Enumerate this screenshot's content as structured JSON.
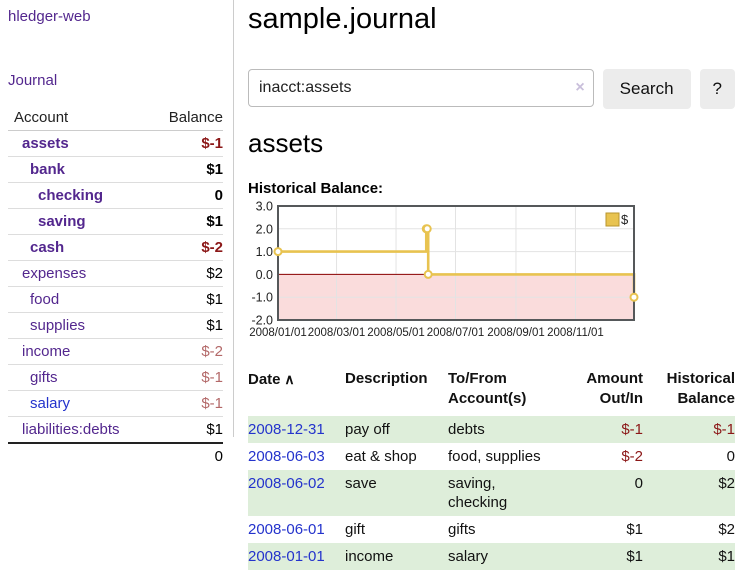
{
  "app": {
    "brand": "hledger-web"
  },
  "colors": {
    "link_purple": "#53278e",
    "link_blue": "#2433cc",
    "negative_strong": "#8b1717",
    "negative_muted": "#b36868",
    "row_stripe_green": "#deeeda"
  },
  "sidebar": {
    "journal_link": "Journal",
    "accounts": {
      "col_account": "Account",
      "col_balance": "Balance",
      "rows": [
        {
          "name": "assets",
          "depth": 1,
          "bold": true,
          "link": "purple",
          "balance": "$-1",
          "balance_style": "neg"
        },
        {
          "name": "bank",
          "depth": 2,
          "bold": true,
          "link": "purple",
          "balance": "$1",
          "balance_style": ""
        },
        {
          "name": "checking",
          "depth": 3,
          "bold": true,
          "link": "purple",
          "balance": "0",
          "balance_style": ""
        },
        {
          "name": "saving",
          "depth": 3,
          "bold": true,
          "link": "purple",
          "balance": "$1",
          "balance_style": ""
        },
        {
          "name": "cash",
          "depth": 2,
          "bold": true,
          "link": "purple",
          "balance": "$-2",
          "balance_style": "neg"
        },
        {
          "name": "expenses",
          "depth": 1,
          "bold": false,
          "link": "purple",
          "balance": "$2",
          "balance_style": ""
        },
        {
          "name": "food",
          "depth": 2,
          "bold": false,
          "link": "purple",
          "balance": "$1",
          "balance_style": ""
        },
        {
          "name": "supplies",
          "depth": 2,
          "bold": false,
          "link": "purple",
          "balance": "$1",
          "balance_style": ""
        },
        {
          "name": "income",
          "depth": 1,
          "bold": false,
          "link": "purple",
          "balance": "$-2",
          "balance_style": "neg-muted"
        },
        {
          "name": "gifts",
          "depth": 2,
          "bold": false,
          "link": "purple",
          "balance": "$-1",
          "balance_style": "neg-muted"
        },
        {
          "name": "salary",
          "depth": 2,
          "bold": false,
          "link": "blue",
          "balance": "$-1",
          "balance_style": "neg-muted"
        },
        {
          "name": "liabilities:debts",
          "depth": 1,
          "bold": false,
          "link": "purple",
          "balance": "$1",
          "balance_style": ""
        }
      ],
      "total": "0"
    }
  },
  "main": {
    "title": "sample.journal",
    "search": {
      "value": "inacct:assets",
      "clear_icon": "×",
      "button": "Search",
      "help_button": "?"
    },
    "account_heading": "assets",
    "chart_label": "Historical Balance:"
  },
  "chart_data": {
    "type": "line",
    "step": true,
    "title": "Historical Balance:",
    "xlabel": "",
    "ylabel": "",
    "x_range": [
      "2008-01-01",
      "2008-12-31"
    ],
    "ylim": [
      -2.0,
      3.0
    ],
    "y_ticks": [
      3.0,
      2.0,
      1.0,
      0.0,
      -1.0,
      -2.0
    ],
    "y_tick_labels": [
      "3.0",
      "2.0",
      "1.0",
      "0.0",
      "-1.0",
      "-2.0"
    ],
    "x_ticks": [
      "2008-01-01",
      "2008-03-01",
      "2008-05-01",
      "2008-07-01",
      "2008-09-01",
      "2008-11-01"
    ],
    "x_tick_labels": [
      "2008/01/01",
      "2008/03/01",
      "2008/05/01",
      "2008/07/01",
      "2008/09/01",
      "2008/11/01"
    ],
    "grid": true,
    "legend_position": "top-right",
    "series": [
      {
        "name": "$",
        "color": "#e8c350",
        "points": [
          [
            "2008-01-01",
            1
          ],
          [
            "2008-06-01",
            2
          ],
          [
            "2008-06-02",
            2
          ],
          [
            "2008-06-03",
            0
          ],
          [
            "2008-12-31",
            -1
          ]
        ]
      }
    ],
    "negative_region": {
      "from": 0,
      "to": -2,
      "color": "#fadcdc"
    },
    "zero_line_color": "#8b0000",
    "grid_color": "#e3e3e3",
    "border_color": "#55585a",
    "legend_swatch_border": "#b8962e"
  },
  "register": {
    "columns": [
      {
        "label": "Date",
        "sort_icon": "∧",
        "align": "left"
      },
      {
        "label": "Description",
        "align": "left"
      },
      {
        "label": "To/From Account(s)",
        "align": "left"
      },
      {
        "label": "Amount Out/In",
        "align": "right"
      },
      {
        "label": "Historical Balance",
        "align": "right"
      }
    ],
    "rows": [
      {
        "date": "2008-12-31",
        "description": "pay off",
        "accounts": "debts",
        "amount": "$-1",
        "amount_neg": true,
        "balance": "$-1",
        "balance_neg": true
      },
      {
        "date": "2008-06-03",
        "description": "eat & shop",
        "accounts": "food, supplies",
        "amount": "$-2",
        "amount_neg": true,
        "balance": "0",
        "balance_neg": false
      },
      {
        "date": "2008-06-02",
        "description": "save",
        "accounts": "saving, checking",
        "amount": "0",
        "amount_neg": false,
        "balance": "$2",
        "balance_neg": false
      },
      {
        "date": "2008-06-01",
        "description": "gift",
        "accounts": "gifts",
        "amount": "$1",
        "amount_neg": false,
        "balance": "$2",
        "balance_neg": false
      },
      {
        "date": "2008-01-01",
        "description": "income",
        "accounts": "salary",
        "amount": "$1",
        "amount_neg": false,
        "balance": "$1",
        "balance_neg": false
      }
    ]
  }
}
